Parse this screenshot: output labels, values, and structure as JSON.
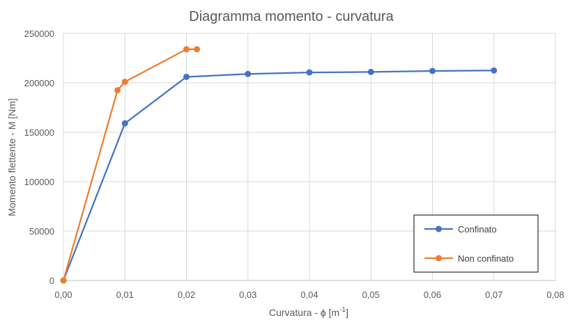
{
  "chart_data": {
    "type": "line",
    "title": "Diagramma momento - curvatura",
    "xlabel": "Curvatura - ϕ [m",
    "xlabel_sup": "-1",
    "xlabel_end": "]",
    "ylabel": "Momento flettente - M [Nm]",
    "xlim": [
      0,
      0.08
    ],
    "ylim": [
      0,
      250000
    ],
    "x_ticks": [
      "0,00",
      "0,01",
      "0,02",
      "0,03",
      "0,04",
      "0,05",
      "0,06",
      "0,07",
      "0,08"
    ],
    "y_ticks": [
      "0",
      "50000",
      "100000",
      "150000",
      "200000",
      "250000"
    ],
    "grid": true,
    "legend_position": "bottom-right",
    "series": [
      {
        "name": "Confinato",
        "color": "#4472C4",
        "x": [
          0,
          0.01,
          0.02,
          0.03,
          0.04,
          0.05,
          0.06,
          0.07
        ],
        "y": [
          0,
          159000,
          206000,
          209000,
          210500,
          211000,
          212000,
          212500
        ]
      },
      {
        "name": "Non confinato",
        "color": "#ED7D31",
        "x": [
          0,
          0.0088,
          0.01,
          0.02,
          0.0217
        ],
        "y": [
          0,
          192500,
          201000,
          234000,
          234000
        ]
      }
    ]
  }
}
